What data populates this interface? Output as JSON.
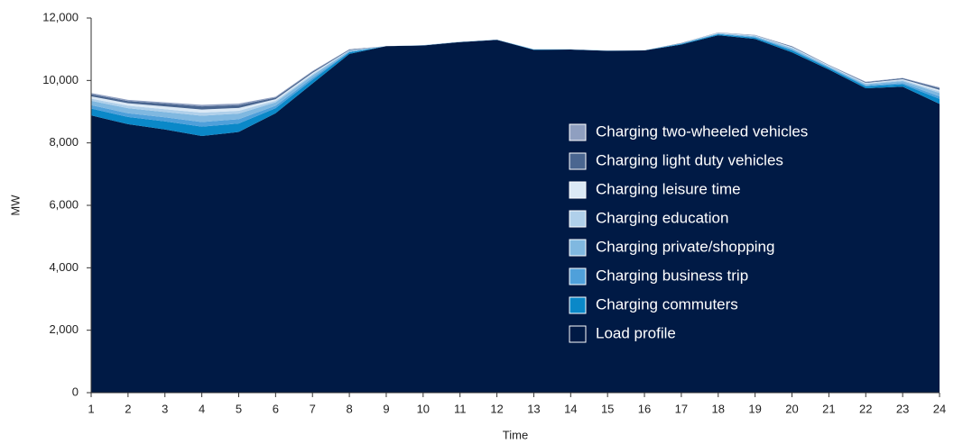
{
  "chart_data": {
    "type": "stacked_area",
    "x_label": "Time",
    "y_label": "MW",
    "x": [
      1,
      2,
      3,
      4,
      5,
      6,
      7,
      8,
      9,
      10,
      11,
      12,
      13,
      14,
      15,
      16,
      17,
      18,
      19,
      20,
      21,
      22,
      23,
      24
    ],
    "xlim": [
      1,
      24
    ],
    "ylim": [
      0,
      12000
    ],
    "yticks": [
      0,
      {
        "value": 2000,
        "label": "2,000"
      },
      {
        "value": 4000,
        "label": "4,000"
      },
      {
        "value": 6000,
        "label": "6,000"
      },
      {
        "value": 8000,
        "label": "8,000"
      },
      {
        "value": 10000,
        "label": "10,000"
      },
      {
        "value": 12000,
        "label": "12,000"
      }
    ],
    "series": [
      {
        "name": "Load profile",
        "color": "#001a45",
        "values": [
          8880,
          8600,
          8430,
          8220,
          8350,
          8950,
          9900,
          10850,
          11100,
          11120,
          11230,
          11300,
          10980,
          10990,
          10950,
          10960,
          11150,
          11450,
          11330,
          10900,
          10350,
          9750,
          9800,
          9250
        ]
      },
      {
        "name": "Charging commuters",
        "color": "#0a88c8",
        "values": [
          220,
          230,
          260,
          300,
          270,
          160,
          120,
          50,
          0,
          0,
          0,
          0,
          10,
          0,
          0,
          0,
          20,
          30,
          40,
          60,
          50,
          60,
          80,
          160
        ]
      },
      {
        "name": "Charging business trip",
        "color": "#4fa0da",
        "values": [
          110,
          120,
          130,
          150,
          140,
          80,
          60,
          20,
          0,
          0,
          0,
          0,
          0,
          0,
          0,
          0,
          10,
          10,
          20,
          30,
          20,
          30,
          40,
          80
        ]
      },
      {
        "name": "Charging private/shopping",
        "color": "#80b8e0",
        "values": [
          140,
          160,
          170,
          200,
          180,
          110,
          80,
          30,
          0,
          10,
          10,
          10,
          10,
          10,
          10,
          10,
          10,
          20,
          30,
          40,
          30,
          40,
          60,
          110
        ]
      },
      {
        "name": "Charging education",
        "color": "#b0d0ea",
        "values": [
          70,
          80,
          90,
          100,
          90,
          50,
          40,
          10,
          0,
          0,
          0,
          0,
          0,
          0,
          0,
          0,
          0,
          10,
          10,
          20,
          10,
          20,
          30,
          50
        ]
      },
      {
        "name": "Charging leisure time",
        "color": "#dbe9f5",
        "values": [
          70,
          80,
          90,
          100,
          90,
          50,
          40,
          10,
          0,
          0,
          0,
          0,
          0,
          0,
          0,
          0,
          0,
          10,
          10,
          20,
          20,
          20,
          30,
          50
        ]
      },
      {
        "name": "Charging light duty vehicles",
        "color": "#4a6690",
        "values": [
          70,
          70,
          90,
          100,
          90,
          50,
          40,
          20,
          0,
          0,
          0,
          0,
          0,
          0,
          0,
          0,
          10,
          10,
          10,
          20,
          10,
          20,
          30,
          50
        ]
      },
      {
        "name": "Charging two-wheeled vehicles",
        "color": "#8f9fc0",
        "values": [
          40,
          40,
          40,
          50,
          50,
          30,
          20,
          10,
          0,
          0,
          0,
          0,
          0,
          0,
          0,
          0,
          0,
          0,
          10,
          10,
          10,
          20,
          10,
          30
        ]
      }
    ]
  }
}
